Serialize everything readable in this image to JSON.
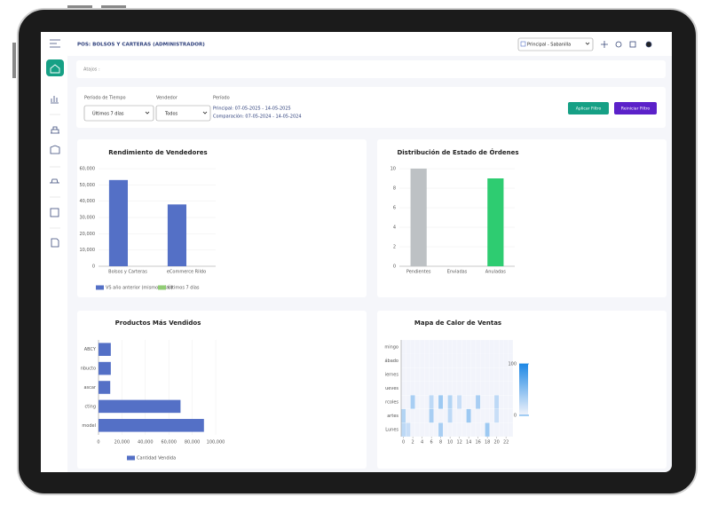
{
  "header": {
    "title": "POS: BOLSOS Y CARTERAS (ADMINISTRADOR)",
    "branch": "Principal - Sabanilla"
  },
  "shortcuts": {
    "label": "Atajos :"
  },
  "filters": {
    "period_label": "Período de Tiempo",
    "period_value": "Últimos 7 días",
    "seller_label": "Vendedor",
    "seller_value": "Todos",
    "range_label": "Período",
    "main": "Principal: 07-05-2025 - 14-05-2025",
    "comparison": "Comparación: 07-05-2024 - 14-05-2024",
    "apply": "Aplicar Filtro",
    "reset": "Reiniciar Filtro"
  },
  "chart_data": [
    {
      "type": "bar",
      "title": "Rendimiento de Vendedores",
      "categories": [
        "Bolsos y Carteras",
        "eCommerce Rildo"
      ],
      "series": [
        {
          "name": "VS año anterior (mismos días)",
          "color": "#5470c6",
          "values": [
            53000,
            38000
          ]
        },
        {
          "name": "Últimos 7 días",
          "color": "#91cc75",
          "values": [
            0,
            0
          ]
        }
      ],
      "ylim": [
        0,
        60000
      ],
      "yticks": [
        0,
        {
          "value": 10000,
          "label": "10,000"
        },
        {
          "value": 20000,
          "label": "20,000"
        },
        {
          "value": 30000,
          "label": "30,000"
        },
        {
          "value": 40000,
          "label": "40,000"
        },
        {
          "value": 50000,
          "label": "50,000"
        },
        {
          "value": 60000,
          "label": "60,000"
        }
      ],
      "grid": true,
      "legend": "bottom"
    },
    {
      "type": "bar",
      "title": "Distribución de Estado de Órdenes",
      "categories": [
        "Pendientes",
        "Enviadas",
        "Anuladas"
      ],
      "values": [
        10,
        0,
        9
      ],
      "colors": [
        "#bdc1c4",
        "#5470c6",
        "#2ecc71"
      ],
      "ylim": [
        0,
        10
      ],
      "yticks": [
        0,
        2,
        4,
        6,
        8,
        10
      ],
      "grid": true
    },
    {
      "type": "hbar",
      "title": "Productos Más Vendidos",
      "categories": [
        "ABCY",
        "nbucto",
        "ascar",
        "cting",
        "model"
      ],
      "series": [
        {
          "name": "Cantidad Vendida",
          "color": "#5470c6",
          "values": [
            10500,
            10500,
            10000,
            70000,
            90000
          ]
        }
      ],
      "xlim": [
        0,
        100000
      ],
      "xticks": [
        0,
        {
          "value": 20000,
          "label": "20,000"
        },
        {
          "value": 40000,
          "label": "40,000"
        },
        {
          "value": 60000,
          "label": "60,000"
        },
        {
          "value": 80000,
          "label": "80,000"
        },
        {
          "value": 100000,
          "label": "100,000"
        }
      ],
      "grid": true,
      "legend": "bottom"
    },
    {
      "type": "heatmap",
      "title": "Mapa de Calor de Ventas",
      "categories": [
        "mingo",
        "ábado",
        "iernes",
        "ueves",
        "rcoles",
        "artes",
        "Lunes"
      ],
      "xlim": [
        -0.5,
        23.5
      ],
      "xticks": [
        0,
        2,
        4,
        6,
        8,
        10,
        12,
        14,
        16,
        18,
        20,
        22
      ],
      "values": [
        [
          0,
          0,
          0,
          0,
          0,
          0,
          0,
          0,
          0,
          0,
          0,
          0,
          0,
          0,
          0,
          0,
          0,
          0,
          0,
          0,
          0,
          0,
          0,
          0
        ],
        [
          0,
          0,
          0,
          0,
          0,
          0,
          0,
          0,
          0,
          0,
          0,
          0,
          0,
          0,
          0,
          0,
          0,
          0,
          0,
          0,
          0,
          0,
          0,
          0
        ],
        [
          0,
          0,
          0,
          0,
          0,
          0,
          0,
          0,
          0,
          0,
          0,
          0,
          0,
          0,
          0,
          0,
          0,
          0,
          0,
          0,
          0,
          0,
          0,
          0
        ],
        [
          0,
          0,
          0,
          0,
          0,
          0,
          0,
          0,
          0,
          0,
          0,
          0,
          0,
          0,
          0,
          0,
          0,
          0,
          0,
          0,
          0,
          0,
          0,
          0
        ],
        [
          0,
          0,
          35,
          0,
          0,
          0,
          25,
          0,
          40,
          0,
          30,
          0,
          20,
          0,
          0,
          0,
          35,
          0,
          0,
          0,
          25,
          0,
          0,
          0
        ],
        [
          30,
          0,
          0,
          0,
          0,
          0,
          35,
          0,
          0,
          0,
          25,
          0,
          0,
          0,
          40,
          0,
          0,
          0,
          0,
          0,
          20,
          0,
          0,
          0
        ],
        [
          25,
          20,
          0,
          0,
          0,
          0,
          0,
          0,
          35,
          0,
          0,
          0,
          0,
          0,
          0,
          0,
          0,
          0,
          40,
          0,
          0,
          0,
          0,
          0
        ]
      ],
      "vlim": [
        0,
        100
      ],
      "vticks": [
        0,
        100
      ],
      "color_range": [
        "#f2f4fb",
        "#1e88e5"
      ]
    }
  ]
}
